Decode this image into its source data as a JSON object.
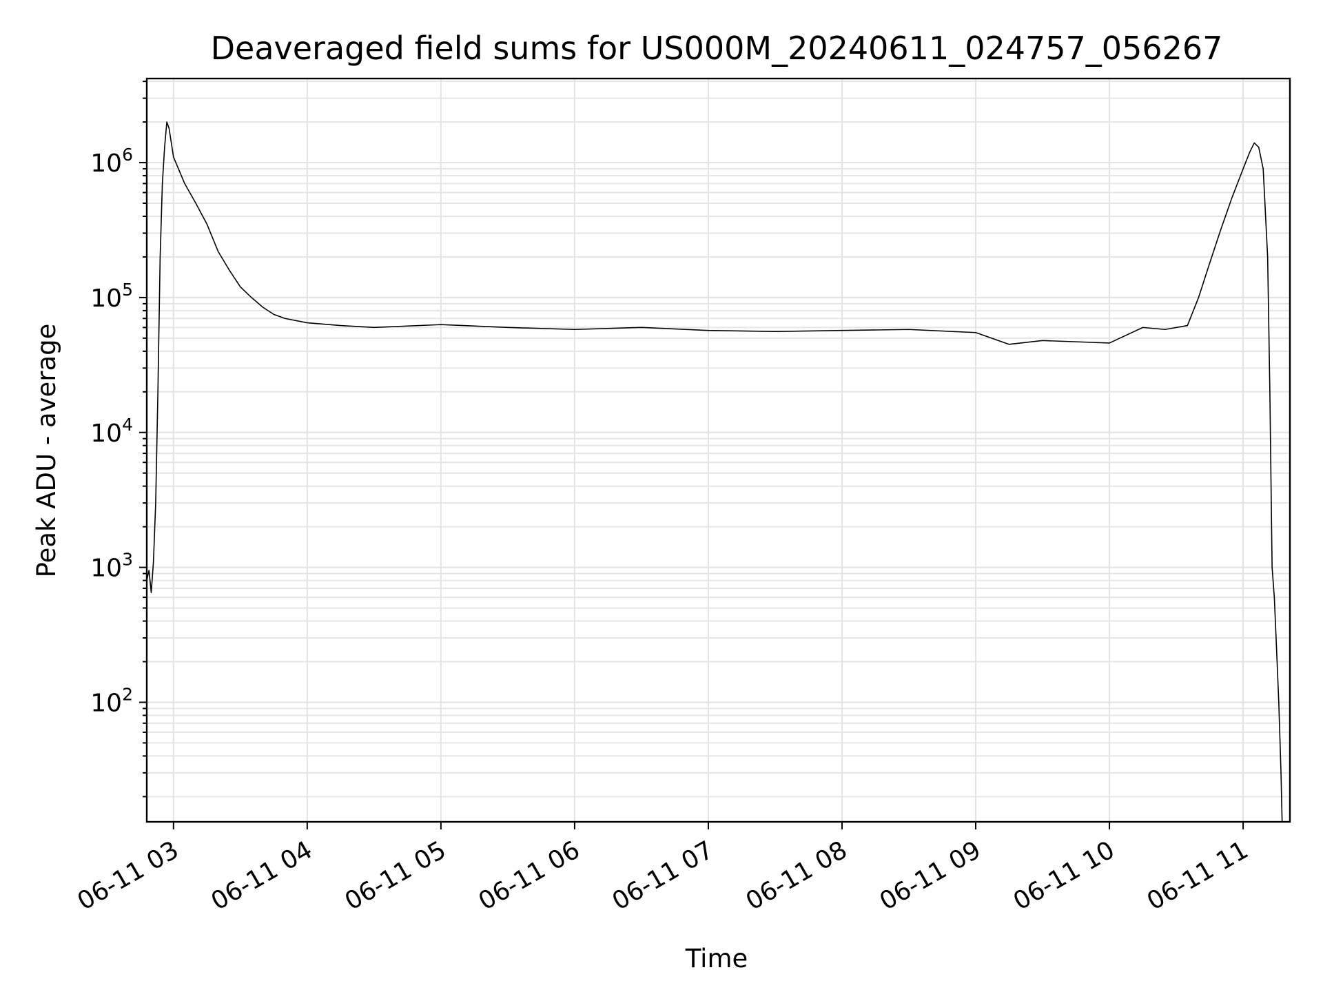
{
  "chart_data": {
    "type": "line",
    "title": "Deaveraged field sums for US000M_20240611_024757_056267",
    "xlabel": "Time",
    "ylabel": "Peak ADU - average",
    "yscale": "log",
    "ylim": [
      13,
      4200000
    ],
    "xlim": [
      "2024-06-11T02:48:00",
      "2024-06-11T11:21:00"
    ],
    "grid": true,
    "line_color": "#000000",
    "x_ticks": [
      {
        "t": "2024-06-11T03:00:00",
        "label": "06-11 03"
      },
      {
        "t": "2024-06-11T04:00:00",
        "label": "06-11 04"
      },
      {
        "t": "2024-06-11T05:00:00",
        "label": "06-11 05"
      },
      {
        "t": "2024-06-11T06:00:00",
        "label": "06-11 06"
      },
      {
        "t": "2024-06-11T07:00:00",
        "label": "06-11 07"
      },
      {
        "t": "2024-06-11T08:00:00",
        "label": "06-11 08"
      },
      {
        "t": "2024-06-11T09:00:00",
        "label": "06-11 09"
      },
      {
        "t": "2024-06-11T10:00:00",
        "label": "06-11 10"
      },
      {
        "t": "2024-06-11T11:00:00",
        "label": "06-11 11"
      }
    ],
    "y_ticks": [
      {
        "value": 100,
        "base": "10",
        "exp": "2"
      },
      {
        "value": 1000,
        "base": "10",
        "exp": "3"
      },
      {
        "value": 10000,
        "base": "10",
        "exp": "4"
      },
      {
        "value": 100000,
        "base": "10",
        "exp": "5"
      },
      {
        "value": 1000000,
        "base": "10",
        "exp": "6"
      }
    ],
    "series": [
      {
        "points": [
          [
            "2024-06-11T02:48:00",
            800
          ],
          [
            "2024-06-11T02:49:00",
            950
          ],
          [
            "2024-06-11T02:50:00",
            650
          ],
          [
            "2024-06-11T02:51:00",
            1100
          ],
          [
            "2024-06-11T02:52:00",
            3000
          ],
          [
            "2024-06-11T02:53:00",
            20000
          ],
          [
            "2024-06-11T02:54:00",
            200000
          ],
          [
            "2024-06-11T02:55:00",
            700000
          ],
          [
            "2024-06-11T02:56:00",
            1300000
          ],
          [
            "2024-06-11T02:57:00",
            2000000
          ],
          [
            "2024-06-11T02:58:00",
            1800000
          ],
          [
            "2024-06-11T03:00:00",
            1100000
          ],
          [
            "2024-06-11T03:05:00",
            700000
          ],
          [
            "2024-06-11T03:10:00",
            500000
          ],
          [
            "2024-06-11T03:15:00",
            350000
          ],
          [
            "2024-06-11T03:20:00",
            220000
          ],
          [
            "2024-06-11T03:25:00",
            160000
          ],
          [
            "2024-06-11T03:30:00",
            120000
          ],
          [
            "2024-06-11T03:35:00",
            100000
          ],
          [
            "2024-06-11T03:40:00",
            85000
          ],
          [
            "2024-06-11T03:45:00",
            75000
          ],
          [
            "2024-06-11T03:50:00",
            70000
          ],
          [
            "2024-06-11T04:00:00",
            65000
          ],
          [
            "2024-06-11T04:15:00",
            62000
          ],
          [
            "2024-06-11T04:30:00",
            60000
          ],
          [
            "2024-06-11T05:00:00",
            63000
          ],
          [
            "2024-06-11T05:30:00",
            60000
          ],
          [
            "2024-06-11T06:00:00",
            58000
          ],
          [
            "2024-06-11T06:30:00",
            60000
          ],
          [
            "2024-06-11T07:00:00",
            57000
          ],
          [
            "2024-06-11T07:30:00",
            56000
          ],
          [
            "2024-06-11T08:00:00",
            57000
          ],
          [
            "2024-06-11T08:30:00",
            58000
          ],
          [
            "2024-06-11T09:00:00",
            55000
          ],
          [
            "2024-06-11T09:15:00",
            45000
          ],
          [
            "2024-06-11T09:30:00",
            48000
          ],
          [
            "2024-06-11T09:45:00",
            47000
          ],
          [
            "2024-06-11T10:00:00",
            46000
          ],
          [
            "2024-06-11T10:15:00",
            60000
          ],
          [
            "2024-06-11T10:25:00",
            58000
          ],
          [
            "2024-06-11T10:35:00",
            62000
          ],
          [
            "2024-06-11T10:40:00",
            100000
          ],
          [
            "2024-06-11T10:45:00",
            180000
          ],
          [
            "2024-06-11T10:50:00",
            320000
          ],
          [
            "2024-06-11T10:55:00",
            550000
          ],
          [
            "2024-06-11T11:00:00",
            900000
          ],
          [
            "2024-06-11T11:03:00",
            1200000
          ],
          [
            "2024-06-11T11:05:00",
            1400000
          ],
          [
            "2024-06-11T11:07:00",
            1300000
          ],
          [
            "2024-06-11T11:09:00",
            900000
          ],
          [
            "2024-06-11T11:11:00",
            200000
          ],
          [
            "2024-06-11T11:12:00",
            20000
          ],
          [
            "2024-06-11T11:13:00",
            1000
          ],
          [
            "2024-06-11T11:14:00",
            600
          ],
          [
            "2024-06-11T11:15:00",
            250
          ],
          [
            "2024-06-11T11:16:00",
            100
          ],
          [
            "2024-06-11T11:17:00",
            30
          ],
          [
            "2024-06-11T11:17:30",
            13
          ]
        ]
      }
    ]
  }
}
